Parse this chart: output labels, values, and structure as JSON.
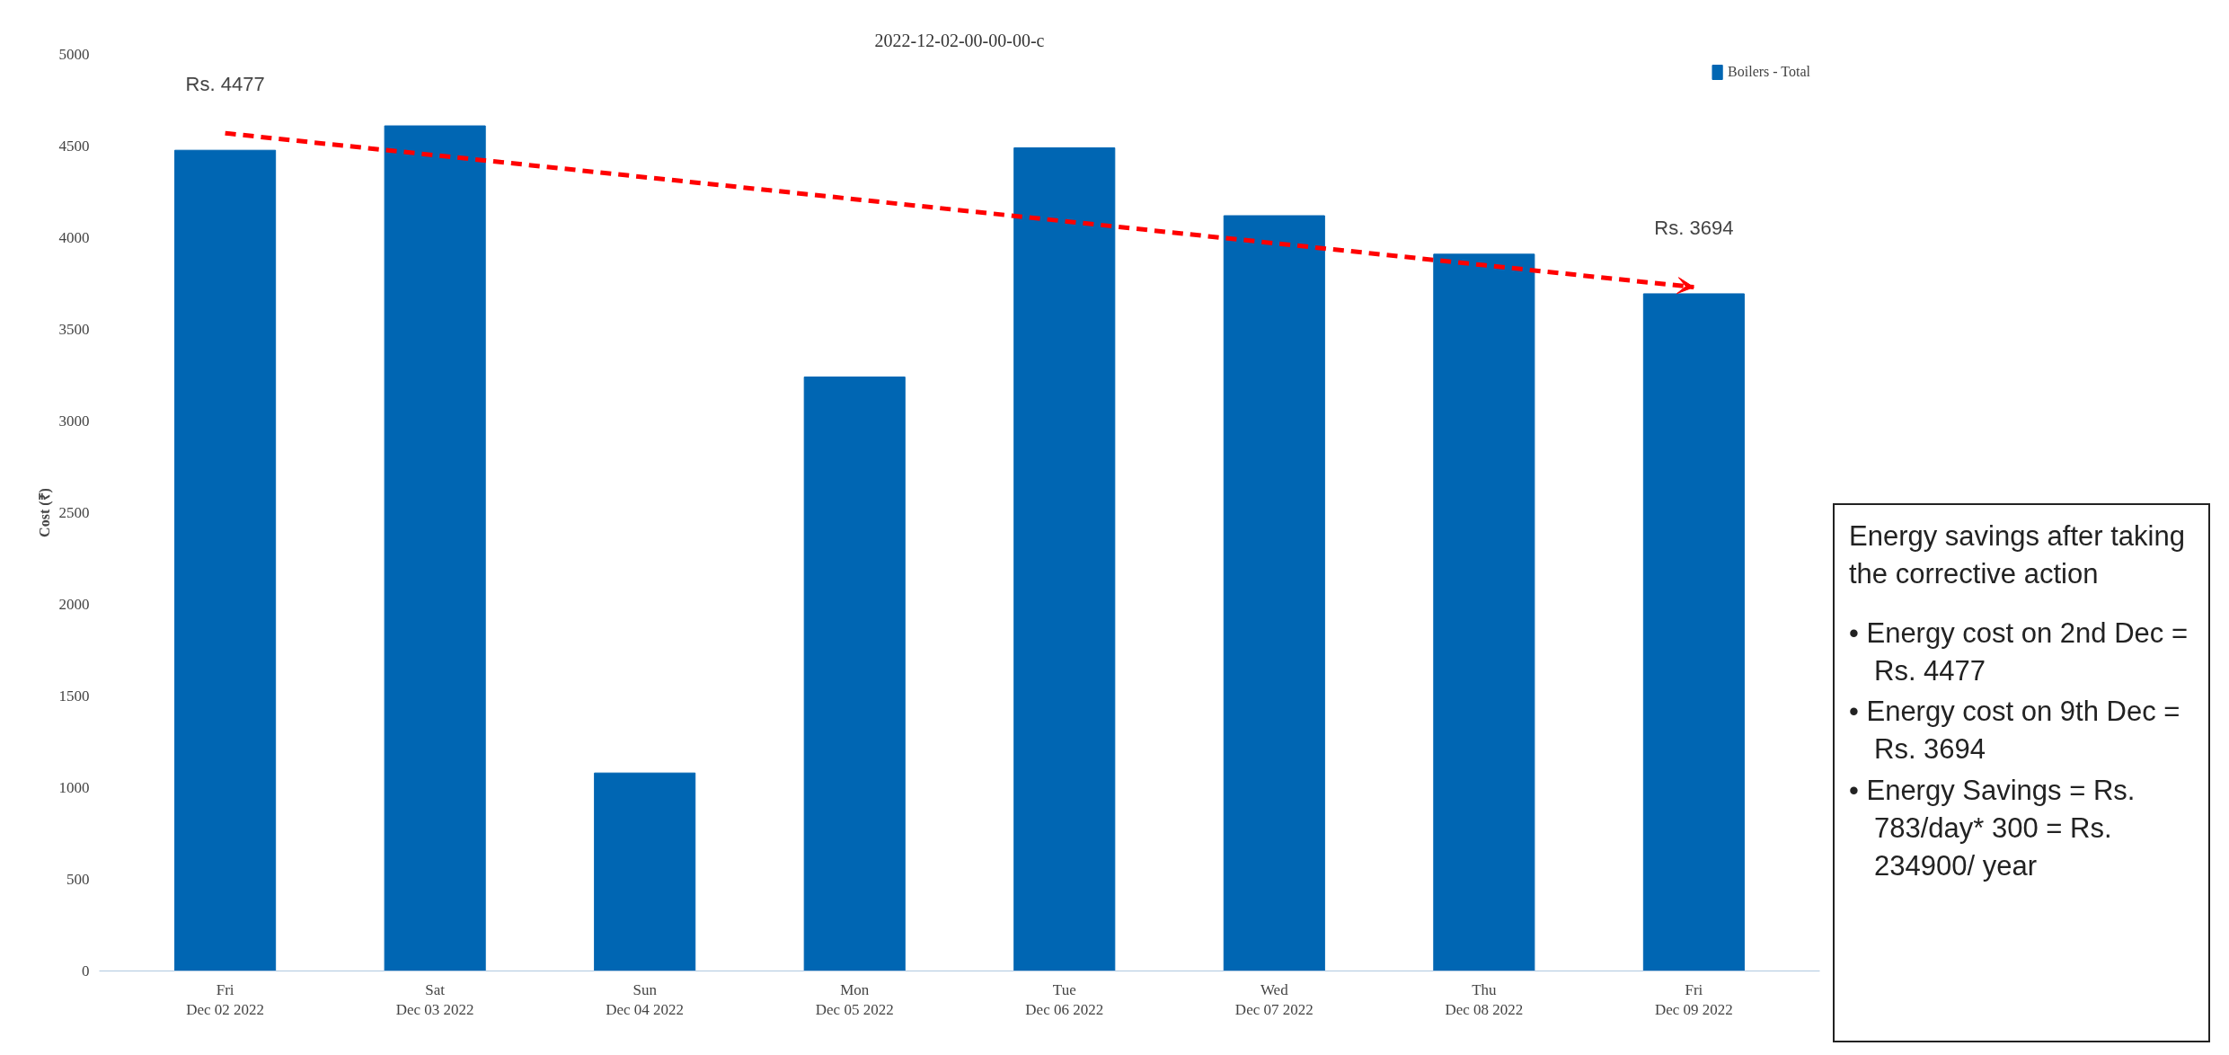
{
  "chart_data": {
    "type": "bar",
    "title": "2022-12-02-00-00-00-c",
    "ylabel": "Cost (₹)",
    "categories": [
      "Fri\nDec 02 2022",
      "Sat\nDec 03 2022",
      "Sun\nDec 04 2022",
      "Mon\nDec 05 2022",
      "Tue\nDec 06 2022",
      "Wed\nDec 07 2022",
      "Thu\nDec 08 2022",
      "Fri\nDec 09 2022"
    ],
    "series": [
      {
        "name": "Boilers - Total",
        "color": "#0066b3",
        "values": [
          4477,
          4610,
          1080,
          3240,
          4490,
          4120,
          3910,
          3694
        ],
        "value_labels": [
          "Rs. 4477",
          null,
          null,
          null,
          null,
          null,
          null,
          "Rs. 3694"
        ]
      },
      {
        "type": "line",
        "color": "#ff0000",
        "line_style": "dashed",
        "values": [
          4570,
          4450,
          4330,
          4210,
          4090,
          3970,
          3850,
          3730
        ]
      }
    ],
    "ylim": [
      0,
      5000
    ],
    "yticks": [
      0,
      500,
      1000,
      1500,
      2000,
      2500,
      3000,
      3500,
      4000,
      4500,
      5000
    ],
    "grid": false,
    "legend": "top right",
    "annotations": [
      "Energy savings after taking the corrective action",
      "• Energy cost on 2nd Dec = Rs. 4477",
      "• Energy cost on 9th Dec = Rs. 3694",
      "• Energy Savings = Rs. 783/day* 300 = Rs. 234900/ year"
    ]
  }
}
